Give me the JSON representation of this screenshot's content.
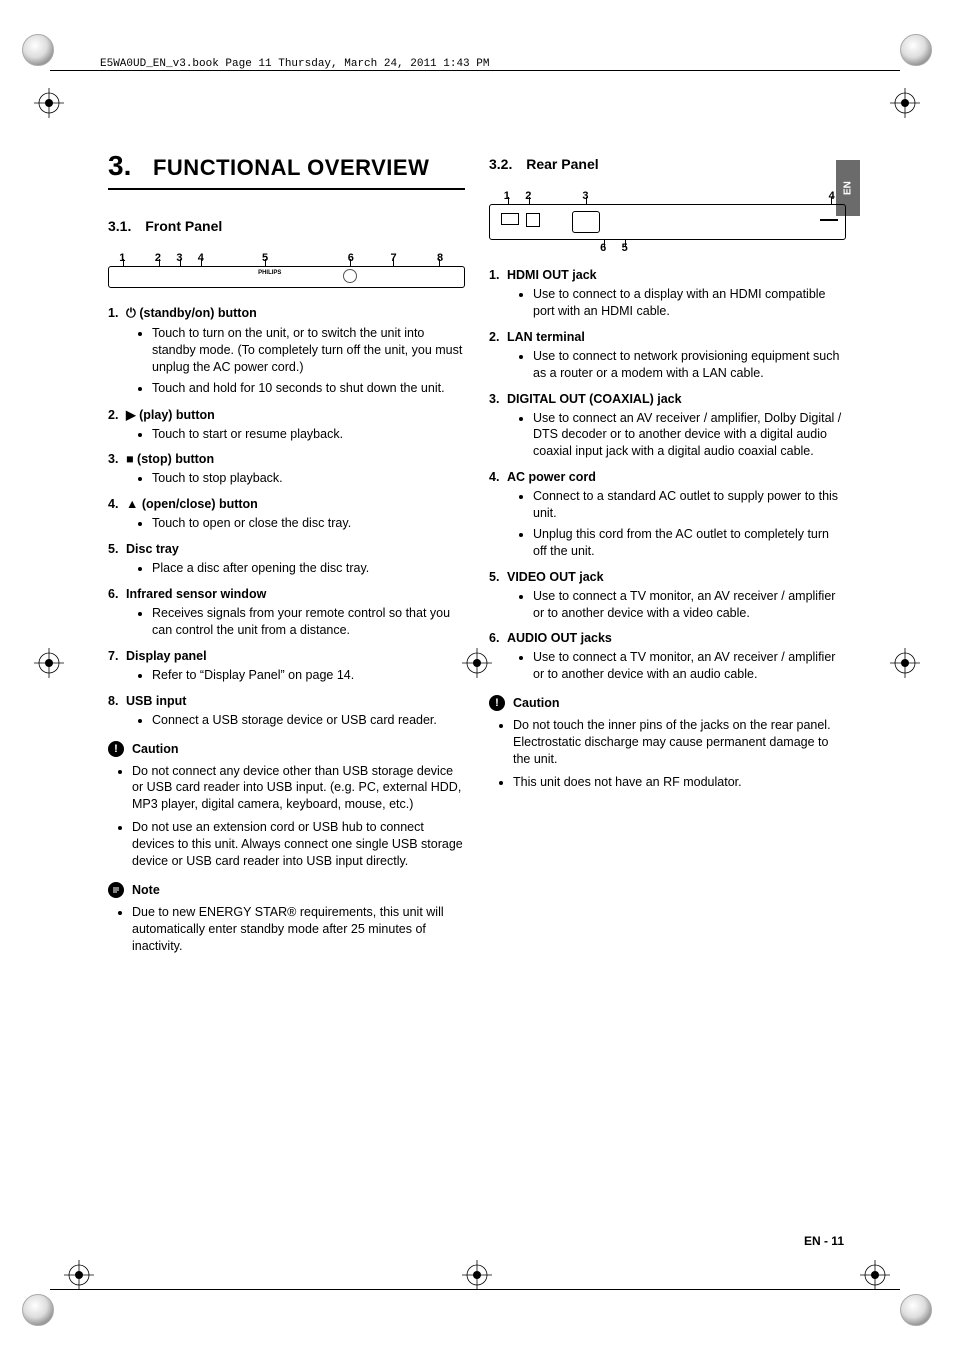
{
  "book_header": "E5WA0UD_EN_v3.book  Page 11  Thursday, March 24, 2011  1:43 PM",
  "lang_tab": "EN",
  "page_number": "EN - 11",
  "chapter": {
    "number": "3.",
    "title": "FUNCTIONAL OVERVIEW"
  },
  "section_front": {
    "number": "3.1.",
    "title": "Front Panel"
  },
  "section_rear": {
    "number": "3.2.",
    "title": "Rear Panel"
  },
  "front_fig_labels": [
    "1",
    "2",
    "3",
    "4",
    "5",
    "6",
    "7",
    "8"
  ],
  "rear_fig_labels_top": [
    "1",
    "2",
    "3",
    "4"
  ],
  "rear_fig_labels_bottom": [
    "6",
    "5"
  ],
  "front_items": [
    {
      "num": "1.",
      "symbol": "⏻",
      "label": "(standby/on) button",
      "bullets": [
        "Touch to turn on the unit, or to switch the unit into standby mode. (To completely turn off the unit, you must unplug the AC power cord.)",
        "Touch and hold for 10 seconds to shut down the unit."
      ]
    },
    {
      "num": "2.",
      "symbol": "▶",
      "label": "(play) button",
      "bullets": [
        "Touch to start or resume playback."
      ]
    },
    {
      "num": "3.",
      "symbol": "■",
      "label": "(stop) button",
      "bullets": [
        "Touch to stop playback."
      ]
    },
    {
      "num": "4.",
      "symbol": "▲",
      "label": "(open/close) button",
      "bullets": [
        "Touch to open or close the disc tray."
      ]
    },
    {
      "num": "5.",
      "symbol": "",
      "label": "Disc tray",
      "bullets": [
        "Place a disc after opening the disc tray."
      ]
    },
    {
      "num": "6.",
      "symbol": "",
      "label": "Infrared sensor window",
      "bullets": [
        "Receives signals from your remote control so that you can control the unit from a distance."
      ]
    },
    {
      "num": "7.",
      "symbol": "",
      "label": "Display panel",
      "bullets": [
        "Refer to “Display Panel” on page 14."
      ]
    },
    {
      "num": "8.",
      "symbol": "",
      "label": "USB input",
      "bullets": [
        "Connect a USB storage device or USB card reader."
      ]
    }
  ],
  "front_caution_label": "Caution",
  "front_caution": [
    "Do not connect any device other than USB storage device or USB card reader into USB input.  (e.g. PC, external HDD, MP3 player, digital camera, keyboard, mouse, etc.)",
    "Do not use an extension cord or USB hub to connect devices to this unit. Always connect one single USB storage device or USB card reader into USB input directly."
  ],
  "front_note_label": "Note",
  "front_note": [
    "Due to new ENERGY STAR® requirements, this unit will automatically enter standby mode after 25 minutes of inactivity."
  ],
  "rear_items": [
    {
      "num": "1.",
      "label": "HDMI OUT jack",
      "bullets": [
        "Use to connect to a display with an HDMI compatible port with an HDMI cable."
      ]
    },
    {
      "num": "2.",
      "label": "LAN terminal",
      "bullets": [
        "Use to connect to network provisioning equipment such as a router or a modem with a LAN cable."
      ]
    },
    {
      "num": "3.",
      "label": "DIGITAL OUT (COAXIAL) jack",
      "bullets": [
        "Use to connect an AV receiver / amplifier, Dolby Digital / DTS decoder or to another device with a digital audio coaxial input jack with a digital audio coaxial cable."
      ]
    },
    {
      "num": "4.",
      "label": "AC power cord",
      "bullets": [
        "Connect to a standard AC outlet to supply power to this unit.",
        "Unplug this cord from the AC outlet to completely turn off the unit."
      ]
    },
    {
      "num": "5.",
      "label": "VIDEO OUT jack",
      "bullets": [
        "Use to connect a TV monitor, an AV receiver / amplifier or to another device with a video cable."
      ]
    },
    {
      "num": "6.",
      "label": "AUDIO OUT jacks",
      "bullets": [
        "Use to connect a TV monitor, an AV receiver / amplifier or to another device with an audio cable."
      ]
    }
  ],
  "rear_caution_label": "Caution",
  "rear_caution": [
    "Do not touch the inner pins of the jacks on the rear panel. Electrostatic discharge may cause permanent damage to the unit.",
    "This unit does not have an RF modulator."
  ],
  "colors": {
    "tab_bg": "#6b6b6b"
  },
  "front_tick_positions_pct": [
    4,
    14,
    20,
    26,
    44,
    68,
    80,
    93
  ],
  "rear_tick_top_pct": [
    5,
    11,
    27,
    96
  ],
  "rear_tick_bottom_pct": [
    32,
    38
  ]
}
